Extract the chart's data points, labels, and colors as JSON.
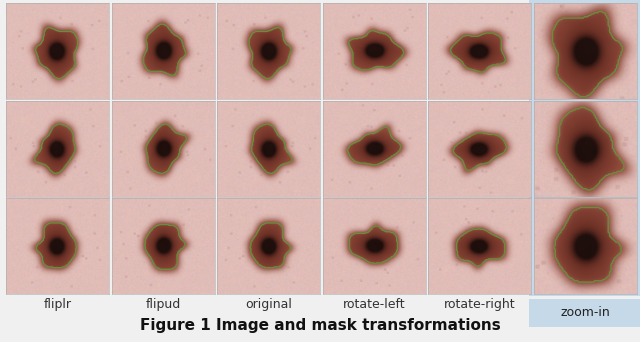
{
  "labels": [
    "fliplr",
    "flipud",
    "original",
    "rotate-left",
    "rotate-right",
    "zoom-in"
  ],
  "caption": "Figure 1 Image and mask transformations",
  "n_rows": 3,
  "n_cols": 6,
  "zoom_in_bg_color": "#c5d9e8",
  "figure_bg_color": "#f0f0f0",
  "label_fontsize": 9,
  "caption_fontsize": 11,
  "green_contour_color": "#6b8c3a",
  "white_bg": "#ffffff"
}
